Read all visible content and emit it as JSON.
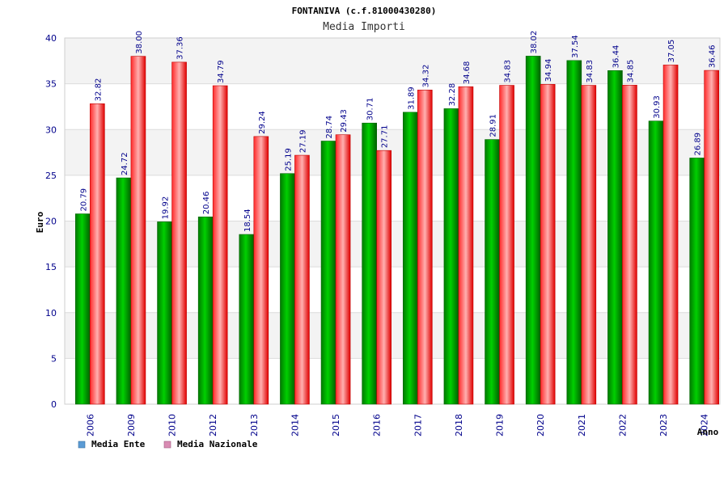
{
  "chart_data": {
    "type": "bar",
    "title": "FONTANIVA (c.f.81000430280)",
    "subtitle": "Media Importi",
    "xlabel": "Anno",
    "ylabel": "Euro",
    "ylim": [
      0,
      40
    ],
    "yticks": [
      0,
      5,
      10,
      15,
      20,
      25,
      30,
      35,
      40
    ],
    "categories": [
      "2006",
      "2009",
      "2010",
      "2012",
      "2013",
      "2014",
      "2015",
      "2016",
      "2017",
      "2018",
      "2019",
      "2020",
      "2021",
      "2022",
      "2023",
      "2024"
    ],
    "series": [
      {
        "name": "Media Ente",
        "color": "#00c800",
        "values": [
          20.79,
          24.72,
          19.92,
          20.46,
          18.54,
          25.19,
          28.74,
          30.71,
          31.89,
          32.28,
          28.91,
          38.02,
          37.54,
          36.44,
          30.93,
          26.89
        ],
        "labels": [
          "20.79",
          "24.72",
          "19.92",
          "20.46",
          "18.54",
          "25.19",
          "28.74",
          "30.71",
          "31.89",
          "32.28",
          "28.91",
          "38.02",
          "37.54",
          "36.44",
          "30.93",
          "26.89"
        ]
      },
      {
        "name": "Media Nazionale",
        "color": "#ff2020",
        "values": [
          32.82,
          38.0,
          37.36,
          34.79,
          29.24,
          27.19,
          29.43,
          27.71,
          34.32,
          34.68,
          34.83,
          34.94,
          34.83,
          34.85,
          37.05,
          36.46
        ],
        "labels": [
          "32.82",
          "38.00",
          "37.36",
          "34.79",
          "29.24",
          "27.19",
          "29.43",
          "27.71",
          "34.32",
          "34.68",
          "34.83",
          "34.94",
          "34.83",
          "34.85",
          "37.05",
          "36.46"
        ]
      }
    ],
    "grid": true,
    "legend_position": "bottom-left",
    "legend_colors": [
      "#5b9bd5",
      "#d98cb3"
    ]
  }
}
